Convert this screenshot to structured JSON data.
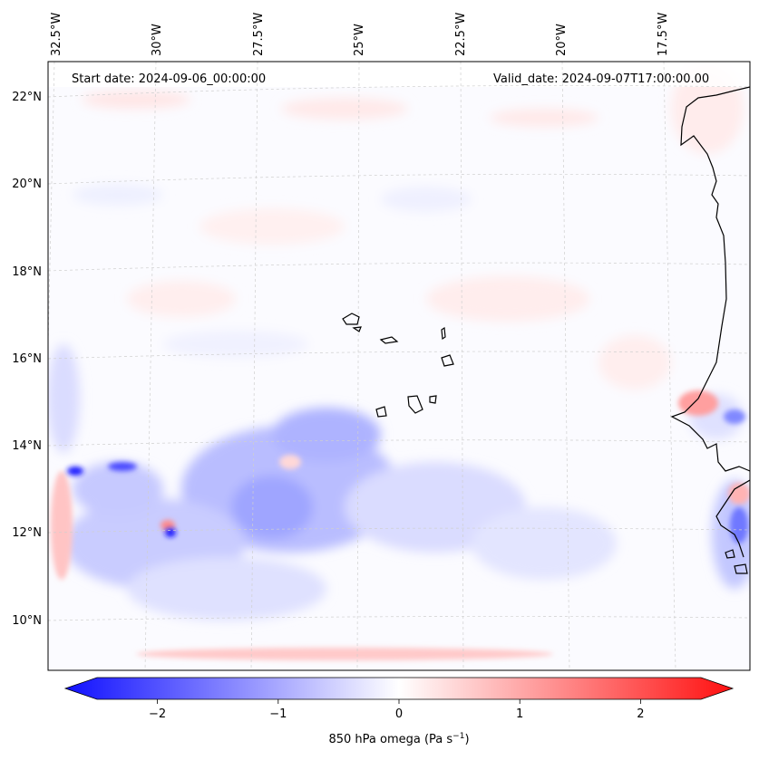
{
  "header": {
    "start_date": "Start date: 2024-09-06_00:00:00",
    "valid_date": "Valid_date: 2024-09-07T17:00:00.00"
  },
  "longitude_labels": [
    "32.5°W",
    "30°W",
    "27.5°W",
    "25°W",
    "22.5°W",
    "20°W",
    "17.5°W"
  ],
  "latitude_labels": [
    "22°N",
    "20°N",
    "18°N",
    "16°N",
    "14°N",
    "12°N",
    "10°N"
  ],
  "colorbar": {
    "ticks": [
      "−2",
      "−1",
      "0",
      "1",
      "2"
    ],
    "tick_values": [
      -2,
      -1,
      0,
      1,
      2
    ],
    "range": [
      -2.5,
      2.5
    ],
    "label_prefix": "850 hPa omega (Pa s",
    "label_sup": "−1",
    "label_suffix": ")",
    "colors": {
      "negative": "#0000ff",
      "zero": "#ffffff",
      "positive": "#ff0000"
    }
  },
  "colors": {
    "coastline": "#000000",
    "gridline": "#cfcfcf",
    "frame": "#000000"
  }
}
